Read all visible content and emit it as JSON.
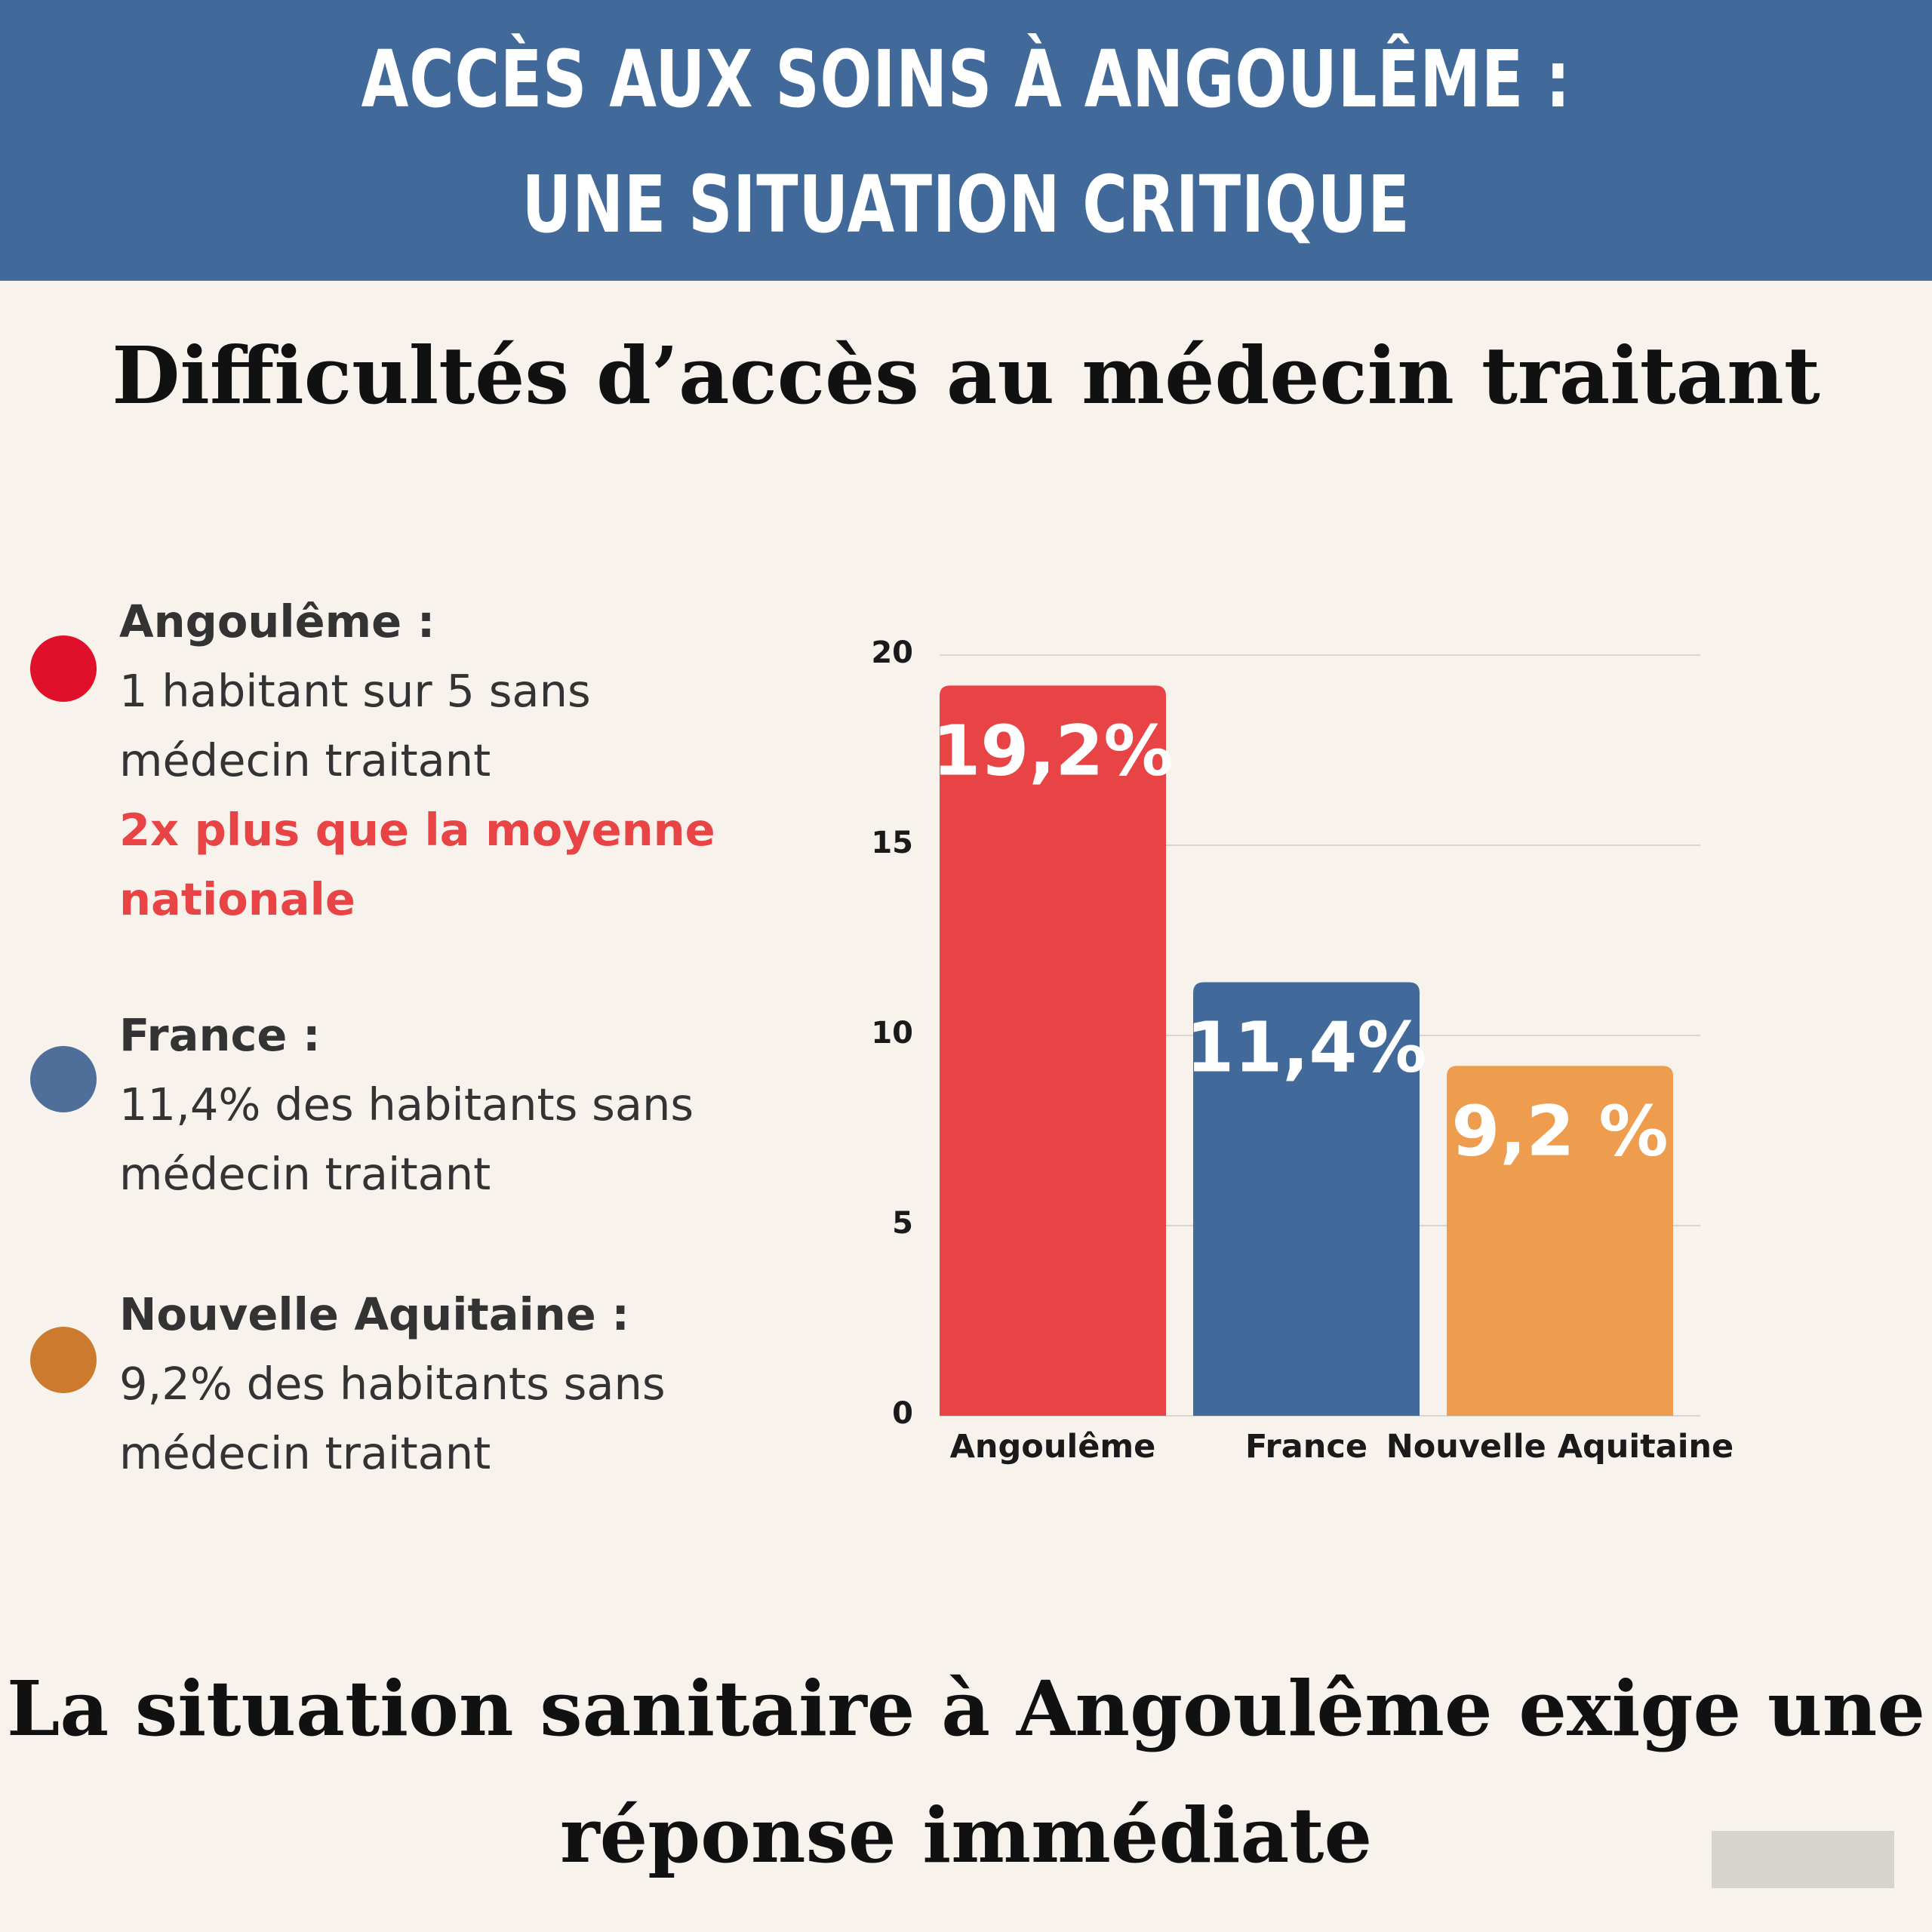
{
  "header": {
    "line1": "ACCÈS AUX SOINS À ANGOULÊME :",
    "line2": "UNE SITUATION CRITIQUE",
    "background": "#416a9b"
  },
  "subtitle": "Difficultés d’accès au médecin traitant",
  "legend": [
    {
      "name": "Angoulême :",
      "lines": [
        "1 habitant sur 5  sans",
        "médecin traitant"
      ],
      "highlight": [
        "2x plus que la moyenne",
        "nationale"
      ],
      "color": "#e0102a"
    },
    {
      "name": "France :",
      "lines": [
        "11,4% des habitants sans",
        "médecin traitant"
      ],
      "highlight": [],
      "color": "#4f6e99"
    },
    {
      "name": "Nouvelle Aquitaine :",
      "lines": [
        "9,2% des habitants sans",
        "médecin traitant"
      ],
      "highlight": [],
      "color": "#cc7a2d"
    }
  ],
  "chart_data": {
    "type": "bar",
    "categories": [
      "Angoulême",
      "France",
      "Nouvelle Aquitaine"
    ],
    "values": [
      19.2,
      11.4,
      9.2
    ],
    "data_labels": [
      "19,2%",
      "11,4%",
      "9,2 %"
    ],
    "colors": [
      "#e84345",
      "#416a9b",
      "#ee9c4e"
    ],
    "yticks": [
      0,
      5,
      10,
      15,
      20
    ],
    "ylim": [
      0,
      20
    ],
    "grid": true,
    "xlabel": "",
    "ylabel": ""
  },
  "footer": {
    "line1": "La situation sanitaire à Angoulême exige une",
    "line2": "réponse immédiate"
  }
}
